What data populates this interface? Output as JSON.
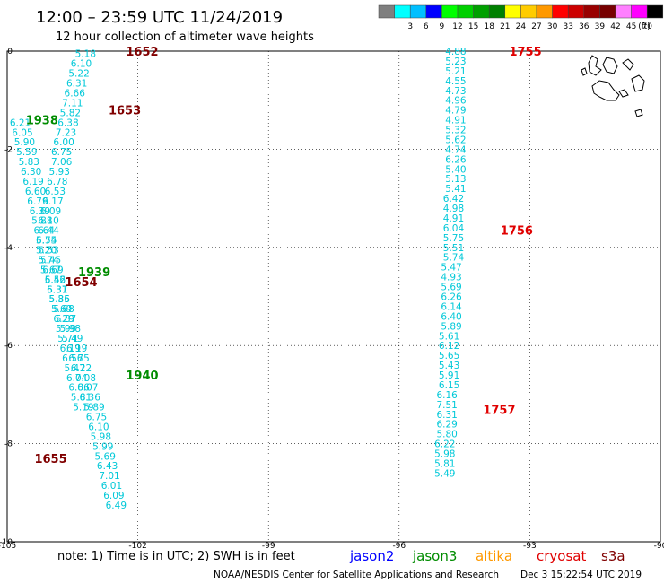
{
  "header": {
    "title": "12:00 – 23:59 UTC 11/24/2019",
    "subtitle": "12 hour collection of altimeter wave heights"
  },
  "color_legend": {
    "unit": "(ft)",
    "bins": [
      {
        "label": "",
        "color": "#7f7f7f"
      },
      {
        "label": "3",
        "color": "#00ffff"
      },
      {
        "label": "6",
        "color": "#00bfff"
      },
      {
        "label": "9",
        "color": "#0000ff"
      },
      {
        "label": "12",
        "color": "#00ff00"
      },
      {
        "label": "15",
        "color": "#00d000"
      },
      {
        "label": "18",
        "color": "#00a000"
      },
      {
        "label": "21",
        "color": "#008000"
      },
      {
        "label": "24",
        "color": "#ffff00"
      },
      {
        "label": "27",
        "color": "#ffcc00"
      },
      {
        "label": "30",
        "color": "#ff9900"
      },
      {
        "label": "33",
        "color": "#ff0000"
      },
      {
        "label": "36",
        "color": "#cc0000"
      },
      {
        "label": "39",
        "color": "#990000"
      },
      {
        "label": "42",
        "color": "#770000"
      },
      {
        "label": "45",
        "color": "#ff80ff"
      },
      {
        "label": "70",
        "color": "#ff00ff"
      },
      {
        "label": "",
        "color": "#000000"
      }
    ]
  },
  "footer": {
    "note": "note:  1) Time is in UTC;  2) SWH is in feet",
    "satellites": [
      {
        "name": "jason2",
        "color": "#0000ff"
      },
      {
        "name": "jason3",
        "color": "#008c00"
      },
      {
        "name": "altika",
        "color": "#ff9900"
      },
      {
        "name": "cryosat",
        "color": "#e00000"
      },
      {
        "name": "s3a",
        "color": "#800000"
      }
    ],
    "credit": "NOAA/NESDIS Center for Satellite Applications and Research",
    "timestamp": "Dec  3 15:22:54 UTC 2019"
  },
  "chart_data": {
    "type": "scatter",
    "title": "12:00 – 23:59 UTC 11/24/2019",
    "subtitle": "12 hour collection of altimeter wave heights",
    "xlim": [
      -105,
      -90
    ],
    "ylim": [
      -10,
      0
    ],
    "xticks": [
      "-105",
      "-102",
      "-99",
      "-96",
      "-93",
      "-90"
    ],
    "yticks": [
      "0",
      "-2",
      "-4",
      "-6",
      "-8",
      "-10"
    ],
    "grid": true,
    "value_color": "#00c8d8",
    "tracks": [
      {
        "satellite": "s3a",
        "color": "#800000",
        "values": [
          {
            "lon": -103.2,
            "lat": -0.05,
            "v": "5.18"
          },
          {
            "lon": -103.3,
            "lat": -0.25,
            "v": "6.10"
          },
          {
            "lon": -103.35,
            "lat": -0.45,
            "v": "5.22"
          },
          {
            "lon": -103.4,
            "lat": -0.65,
            "v": "6.31"
          },
          {
            "lon": -103.45,
            "lat": -0.85,
            "v": "6.66"
          },
          {
            "lon": -103.5,
            "lat": -1.05,
            "v": "7.11"
          },
          {
            "lon": -103.55,
            "lat": -1.25,
            "v": "5.82"
          },
          {
            "lon": -103.6,
            "lat": -1.45,
            "v": "6.38"
          },
          {
            "lon": -103.65,
            "lat": -1.65,
            "v": "7.23"
          },
          {
            "lon": -103.7,
            "lat": -1.85,
            "v": "6.00"
          },
          {
            "lon": -103.75,
            "lat": -2.05,
            "v": "6.75"
          },
          {
            "lon": -103.75,
            "lat": -2.25,
            "v": "7.06"
          },
          {
            "lon": -103.8,
            "lat": -2.45,
            "v": "5.93"
          },
          {
            "lon": -103.85,
            "lat": -2.65,
            "v": "6.78"
          },
          {
            "lon": -103.9,
            "lat": -2.85,
            "v": "6.53"
          },
          {
            "lon": -103.95,
            "lat": -3.05,
            "v": "6.17"
          },
          {
            "lon": -104.0,
            "lat": -3.25,
            "v": "6.09"
          },
          {
            "lon": -104.05,
            "lat": -3.45,
            "v": "6.10"
          },
          {
            "lon": -104.05,
            "lat": -3.65,
            "v": "6.44"
          },
          {
            "lon": -104.1,
            "lat": -3.85,
            "v": "5.75"
          },
          {
            "lon": -104.1,
            "lat": -4.05,
            "v": "5.20"
          },
          {
            "lon": -104.05,
            "lat": -4.25,
            "v": "5.74"
          },
          {
            "lon": -104.0,
            "lat": -4.45,
            "v": "5.67"
          },
          {
            "lon": -103.9,
            "lat": -4.65,
            "v": "5.56"
          },
          {
            "lon": -103.85,
            "lat": -4.85,
            "v": "6.37"
          },
          {
            "lon": -103.8,
            "lat": -5.05,
            "v": "5.86"
          },
          {
            "lon": -103.7,
            "lat": -5.25,
            "v": "5.68"
          },
          {
            "lon": -103.65,
            "lat": -5.45,
            "v": "5.87"
          },
          {
            "lon": -103.55,
            "lat": -5.65,
            "v": "5.98"
          },
          {
            "lon": -103.5,
            "lat": -5.85,
            "v": "5.49"
          },
          {
            "lon": -103.4,
            "lat": -6.05,
            "v": "6.19"
          },
          {
            "lon": -103.35,
            "lat": -6.25,
            "v": "6.75"
          },
          {
            "lon": -103.3,
            "lat": -6.45,
            "v": "6.22"
          },
          {
            "lon": -103.2,
            "lat": -6.65,
            "v": "7.08"
          },
          {
            "lon": -103.15,
            "lat": -6.85,
            "v": "6.07"
          },
          {
            "lon": -103.1,
            "lat": -7.05,
            "v": "6.36"
          },
          {
            "lon": -103.0,
            "lat": -7.25,
            "v": "5.89"
          },
          {
            "lon": -102.95,
            "lat": -7.45,
            "v": "6.75"
          },
          {
            "lon": -102.9,
            "lat": -7.65,
            "v": "6.10"
          },
          {
            "lon": -102.85,
            "lat": -7.85,
            "v": "5.98"
          },
          {
            "lon": -102.8,
            "lat": -8.05,
            "v": "5.99"
          },
          {
            "lon": -102.75,
            "lat": -8.25,
            "v": "5.69"
          },
          {
            "lon": -102.7,
            "lat": -8.45,
            "v": "6.43"
          },
          {
            "lon": -102.65,
            "lat": -8.65,
            "v": "7.01"
          },
          {
            "lon": -102.6,
            "lat": -8.85,
            "v": "6.01"
          },
          {
            "lon": -102.55,
            "lat": -9.05,
            "v": "6.09"
          },
          {
            "lon": -102.5,
            "lat": -9.25,
            "v": "6.49"
          }
        ],
        "times": [
          {
            "lon": -101.9,
            "lat": 0.0,
            "t": "1652"
          },
          {
            "lon": -102.3,
            "lat": -1.2,
            "t": "1653"
          },
          {
            "lon": -103.3,
            "lat": -4.7,
            "t": "1654"
          },
          {
            "lon": -104.0,
            "lat": -8.3,
            "t": "1655"
          }
        ]
      },
      {
        "satellite": "jason3",
        "color": "#008c00",
        "values": [
          {
            "lon": -104.7,
            "lat": -1.45,
            "v": "6.21"
          },
          {
            "lon": -104.65,
            "lat": -1.65,
            "v": "6.05"
          },
          {
            "lon": -104.6,
            "lat": -1.85,
            "v": "5.90"
          },
          {
            "lon": -104.55,
            "lat": -2.05,
            "v": "5.59"
          },
          {
            "lon": -104.5,
            "lat": -2.25,
            "v": "5.83"
          },
          {
            "lon": -104.45,
            "lat": -2.45,
            "v": "6.30"
          },
          {
            "lon": -104.4,
            "lat": -2.65,
            "v": "6.19"
          },
          {
            "lon": -104.35,
            "lat": -2.85,
            "v": "6.60"
          },
          {
            "lon": -104.3,
            "lat": -3.05,
            "v": "6.79"
          },
          {
            "lon": -104.25,
            "lat": -3.25,
            "v": "6.39"
          },
          {
            "lon": -104.2,
            "lat": -3.45,
            "v": "5.88"
          },
          {
            "lon": -104.15,
            "lat": -3.65,
            "v": "6.64"
          },
          {
            "lon": -104.1,
            "lat": -3.85,
            "v": "6.54"
          },
          {
            "lon": -104.05,
            "lat": -4.05,
            "v": "6.53"
          },
          {
            "lon": -104.0,
            "lat": -4.25,
            "v": "5.45"
          },
          {
            "lon": -103.95,
            "lat": -4.45,
            "v": "6.69"
          },
          {
            "lon": -103.9,
            "lat": -4.65,
            "v": "6.42"
          },
          {
            "lon": -103.85,
            "lat": -4.85,
            "v": "5.31"
          },
          {
            "lon": -103.8,
            "lat": -5.05,
            "v": "5.35"
          },
          {
            "lon": -103.75,
            "lat": -5.25,
            "v": "5.69"
          },
          {
            "lon": -103.7,
            "lat": -5.45,
            "v": "6.29"
          },
          {
            "lon": -103.65,
            "lat": -5.65,
            "v": "5.99"
          },
          {
            "lon": -103.6,
            "lat": -5.85,
            "v": "5.71"
          },
          {
            "lon": -103.55,
            "lat": -6.05,
            "v": "6.19"
          },
          {
            "lon": -103.5,
            "lat": -6.25,
            "v": "6.56"
          },
          {
            "lon": -103.45,
            "lat": -6.45,
            "v": "5.47"
          },
          {
            "lon": -103.4,
            "lat": -6.65,
            "v": "6.04"
          },
          {
            "lon": -103.35,
            "lat": -6.85,
            "v": "6.86"
          },
          {
            "lon": -103.3,
            "lat": -7.05,
            "v": "5.81"
          },
          {
            "lon": -103.25,
            "lat": -7.25,
            "v": "5.19"
          }
        ],
        "times": [
          {
            "lon": -104.2,
            "lat": -1.4,
            "t": "1938"
          },
          {
            "lon": -103.0,
            "lat": -4.5,
            "t": "1939"
          },
          {
            "lon": -101.9,
            "lat": -6.6,
            "t": "1940"
          }
        ]
      },
      {
        "satellite": "cryosat",
        "color": "#e00000",
        "values": [
          {
            "lon": -94.7,
            "lat": 0.0,
            "v": "4.88"
          },
          {
            "lon": -94.7,
            "lat": -0.2,
            "v": "5.23"
          },
          {
            "lon": -94.7,
            "lat": -0.4,
            "v": "5.21"
          },
          {
            "lon": -94.7,
            "lat": -0.6,
            "v": "4.55"
          },
          {
            "lon": -94.7,
            "lat": -0.8,
            "v": "4.73"
          },
          {
            "lon": -94.7,
            "lat": -1.0,
            "v": "4.96"
          },
          {
            "lon": -94.7,
            "lat": -1.2,
            "v": "4.79"
          },
          {
            "lon": -94.7,
            "lat": -1.4,
            "v": "4.91"
          },
          {
            "lon": -94.7,
            "lat": -1.6,
            "v": "5.32"
          },
          {
            "lon": -94.7,
            "lat": -1.8,
            "v": "5.62"
          },
          {
            "lon": -94.7,
            "lat": -2.0,
            "v": "4.74"
          },
          {
            "lon": -94.7,
            "lat": -2.2,
            "v": "6.26"
          },
          {
            "lon": -94.7,
            "lat": -2.4,
            "v": "5.40"
          },
          {
            "lon": -94.7,
            "lat": -2.6,
            "v": "5.13"
          },
          {
            "lon": -94.7,
            "lat": -2.8,
            "v": "5.41"
          },
          {
            "lon": -94.75,
            "lat": -3.0,
            "v": "6.42"
          },
          {
            "lon": -94.75,
            "lat": -3.2,
            "v": "4.98"
          },
          {
            "lon": -94.75,
            "lat": -3.4,
            "v": "4.91"
          },
          {
            "lon": -94.75,
            "lat": -3.6,
            "v": "6.04"
          },
          {
            "lon": -94.75,
            "lat": -3.8,
            "v": "5.75"
          },
          {
            "lon": -94.75,
            "lat": -4.0,
            "v": "5.51"
          },
          {
            "lon": -94.75,
            "lat": -4.2,
            "v": "5.74"
          },
          {
            "lon": -94.8,
            "lat": -4.4,
            "v": "5.47"
          },
          {
            "lon": -94.8,
            "lat": -4.6,
            "v": "4.93"
          },
          {
            "lon": -94.8,
            "lat": -4.8,
            "v": "5.69"
          },
          {
            "lon": -94.8,
            "lat": -5.0,
            "v": "6.26"
          },
          {
            "lon": -94.8,
            "lat": -5.2,
            "v": "6.14"
          },
          {
            "lon": -94.8,
            "lat": -5.4,
            "v": "6.40"
          },
          {
            "lon": -94.8,
            "lat": -5.6,
            "v": "5.89"
          },
          {
            "lon": -94.85,
            "lat": -5.8,
            "v": "5.61"
          },
          {
            "lon": -94.85,
            "lat": -6.0,
            "v": "6.12"
          },
          {
            "lon": -94.85,
            "lat": -6.2,
            "v": "5.65"
          },
          {
            "lon": -94.85,
            "lat": -6.4,
            "v": "5.43"
          },
          {
            "lon": -94.85,
            "lat": -6.6,
            "v": "5.91"
          },
          {
            "lon": -94.85,
            "lat": -6.8,
            "v": "6.15"
          },
          {
            "lon": -94.9,
            "lat": -7.0,
            "v": "6.16"
          },
          {
            "lon": -94.9,
            "lat": -7.2,
            "v": "7.51"
          },
          {
            "lon": -94.9,
            "lat": -7.4,
            "v": "6.31"
          },
          {
            "lon": -94.9,
            "lat": -7.6,
            "v": "6.29"
          },
          {
            "lon": -94.9,
            "lat": -7.8,
            "v": "5.80"
          },
          {
            "lon": -94.95,
            "lat": -8.0,
            "v": "6.22"
          },
          {
            "lon": -94.95,
            "lat": -8.2,
            "v": "5.98"
          },
          {
            "lon": -94.95,
            "lat": -8.4,
            "v": "5.81"
          },
          {
            "lon": -94.95,
            "lat": -8.6,
            "v": "5.49"
          }
        ],
        "times": [
          {
            "lon": -93.1,
            "lat": 0.0,
            "t": "1755"
          },
          {
            "lon": -93.3,
            "lat": -3.65,
            "t": "1756"
          },
          {
            "lon": -93.7,
            "lat": -7.3,
            "t": "1757"
          }
        ]
      }
    ]
  }
}
